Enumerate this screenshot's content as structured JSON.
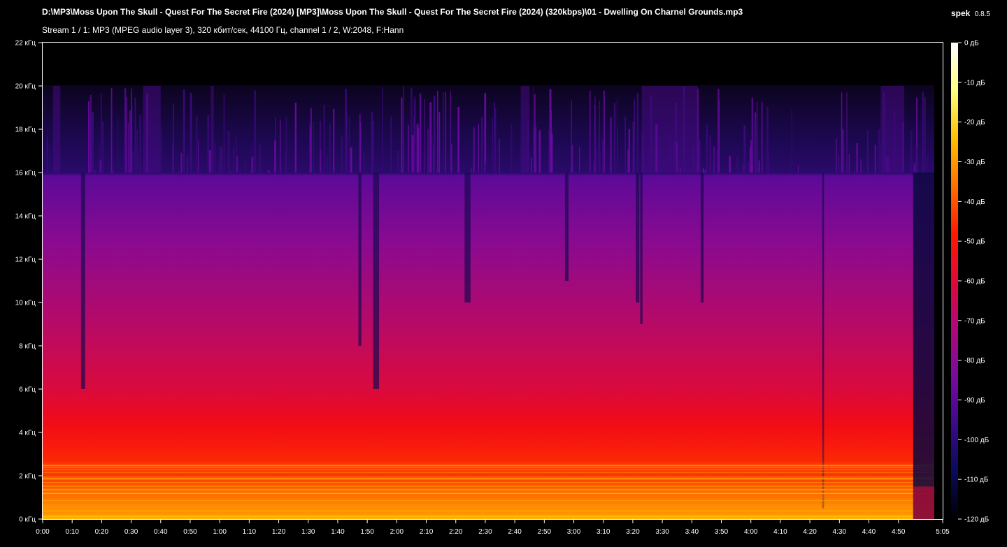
{
  "header": {
    "file_path": "D:\\MP3\\Moss Upon The Skull - Quest For The Secret Fire (2024) [MP3]\\Moss Upon The Skull - Quest For The Secret Fire (2024) (320kbps)\\01 - Dwelling On Charnel Grounds.mp3",
    "app_name": "spek",
    "app_version": "0.8.5",
    "stream_info": "Stream 1 / 1: MP3 (MPEG audio layer 3), 320 кбит/сек, 44100 Гц, channel 1 / 2, W:2048, F:Hann"
  },
  "chart_data": {
    "type": "heatmap",
    "title": "",
    "xlabel": "",
    "ylabel": "",
    "x_range_seconds": [
      0,
      305
    ],
    "y_range_khz": [
      0,
      22
    ],
    "x_ticks": [
      "0:00",
      "0:10",
      "0:20",
      "0:30",
      "0:40",
      "0:50",
      "1:00",
      "1:10",
      "1:20",
      "1:30",
      "1:40",
      "1:50",
      "2:00",
      "2:10",
      "2:20",
      "2:30",
      "2:40",
      "2:50",
      "3:00",
      "3:10",
      "3:20",
      "3:30",
      "3:40",
      "3:50",
      "4:00",
      "4:10",
      "4:20",
      "4:30",
      "4:40",
      "4:50",
      "5:05"
    ],
    "x_tick_seconds": [
      0,
      10,
      20,
      30,
      40,
      50,
      60,
      70,
      80,
      90,
      100,
      110,
      120,
      130,
      140,
      150,
      160,
      170,
      180,
      190,
      200,
      210,
      220,
      230,
      240,
      250,
      260,
      270,
      280,
      290,
      305
    ],
    "y_ticks": [
      "0 кГц",
      "2 кГц",
      "4 кГц",
      "6 кГц",
      "8 кГц",
      "10 кГц",
      "12 кГц",
      "14 кГц",
      "16 кГц",
      "18 кГц",
      "20 кГц",
      "22 кГц"
    ],
    "y_tick_khz": [
      0,
      2,
      4,
      6,
      8,
      10,
      12,
      14,
      16,
      18,
      20,
      22
    ],
    "colorbar_ticks": [
      "0 дБ",
      "-10 дБ",
      "-20 дБ",
      "-30 дБ",
      "-40 дБ",
      "-50 дБ",
      "-60 дБ",
      "-70 дБ",
      "-80 дБ",
      "-90 дБ",
      "-100 дБ",
      "-110 дБ",
      "-120 дБ"
    ],
    "colorbar_db": [
      0,
      -10,
      -20,
      -30,
      -40,
      -50,
      -60,
      -70,
      -80,
      -90,
      -100,
      -110,
      -120
    ],
    "colormap": [
      "#000000",
      "#0a0a5a",
      "#3a0a8a",
      "#7a0aa0",
      "#b0087a",
      "#e00838",
      "#ff1a00",
      "#ff7000",
      "#ffc000",
      "#ffff80",
      "#ffffff"
    ],
    "lowpass_cutoff_khz": 16,
    "max_content_khz": 20
  }
}
